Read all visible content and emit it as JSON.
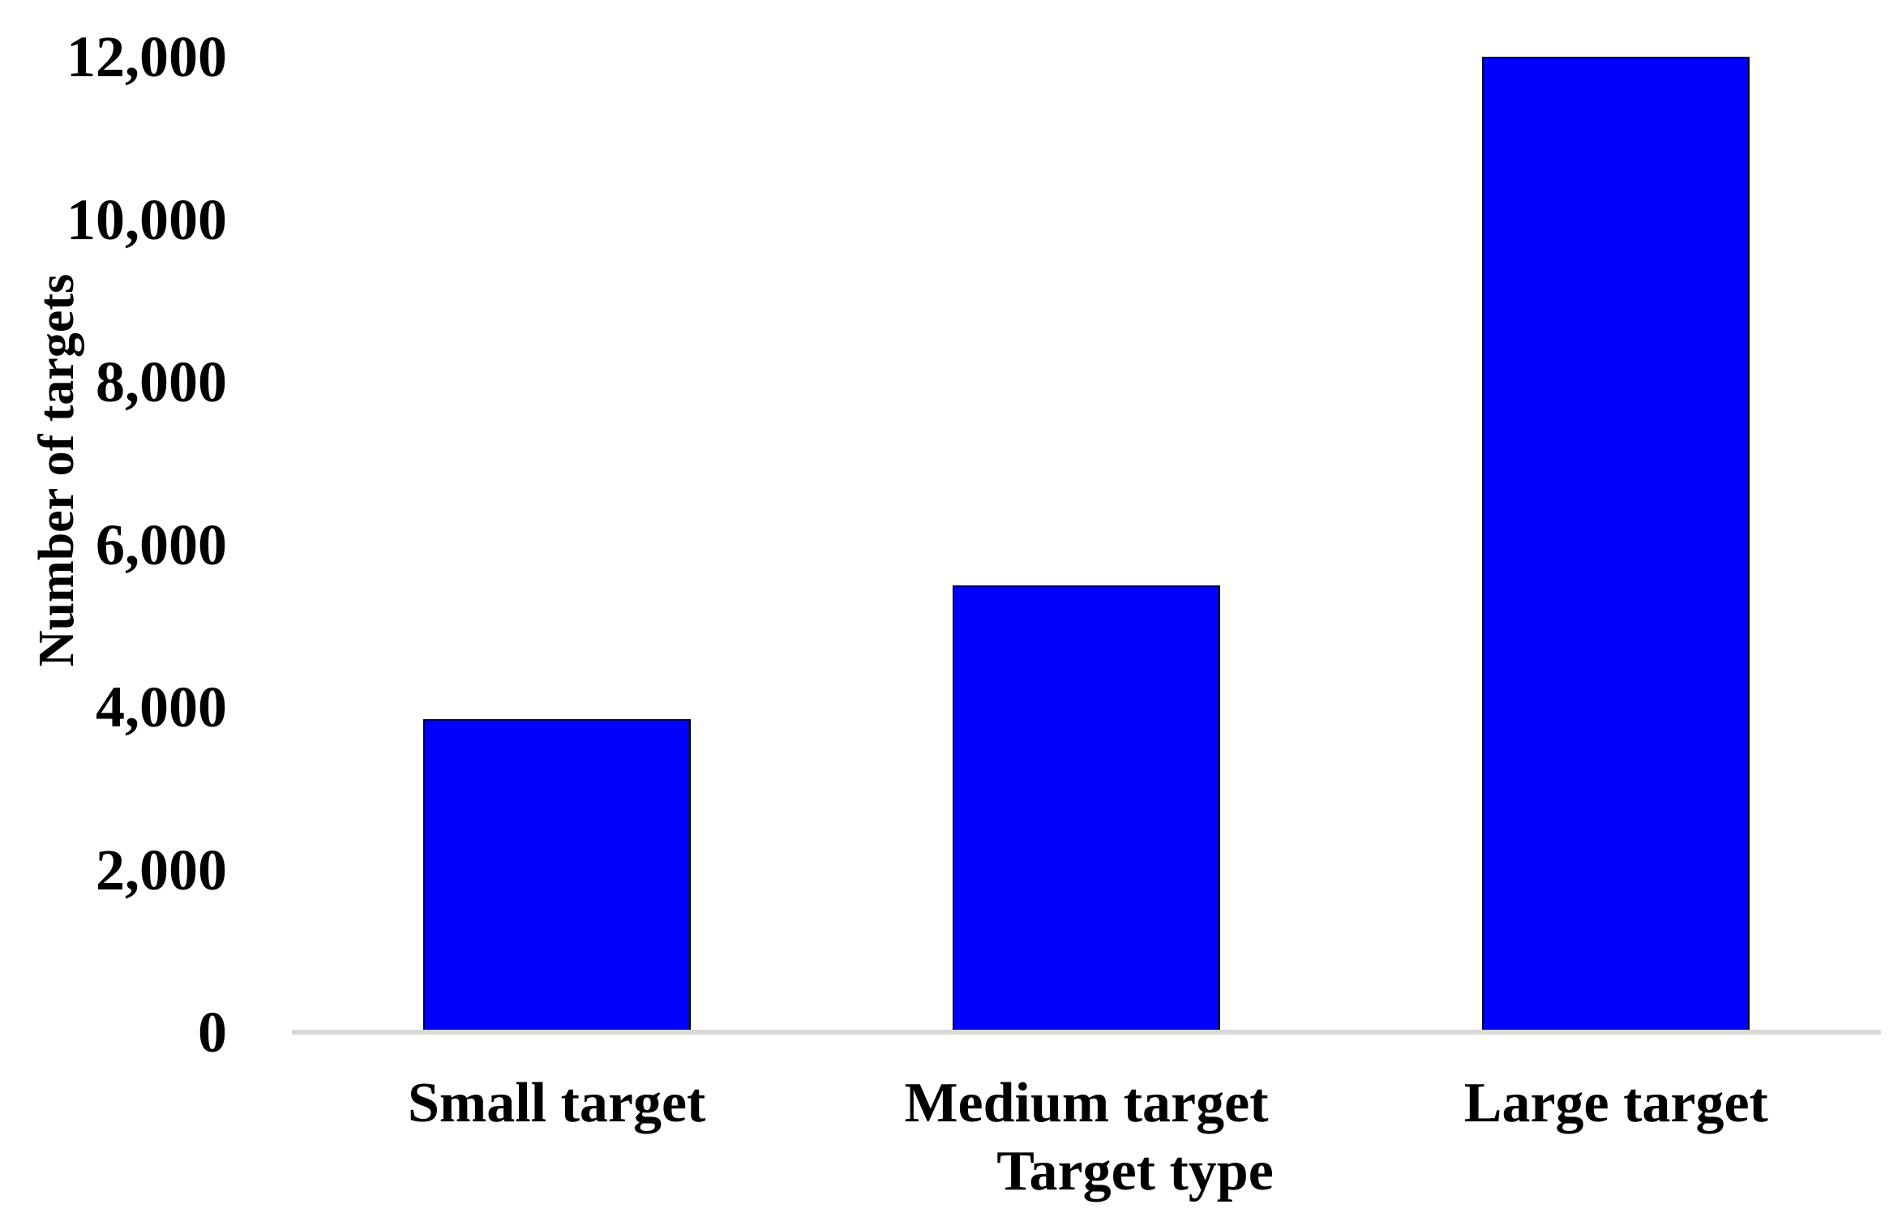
{
  "chart_data": {
    "type": "bar",
    "title": "",
    "categories": [
      "Small target",
      "Medium target",
      "Large target"
    ],
    "values": [
      3850,
      5500,
      12000
    ],
    "xlabel": "Target type",
    "ylabel": "Number of targets",
    "ylim": [
      0,
      12000
    ],
    "y_tick_step": 2000,
    "y_tick_labels": [
      "0",
      "2,000",
      "4,000",
      "6,000",
      "8,000",
      "10,000",
      "12,000"
    ],
    "grid": false,
    "legend": false,
    "colors": {
      "bar_fill": "#0000FE",
      "bar_border": "#000000",
      "axis_line": "#D9D9D9",
      "text": "#000000"
    }
  }
}
